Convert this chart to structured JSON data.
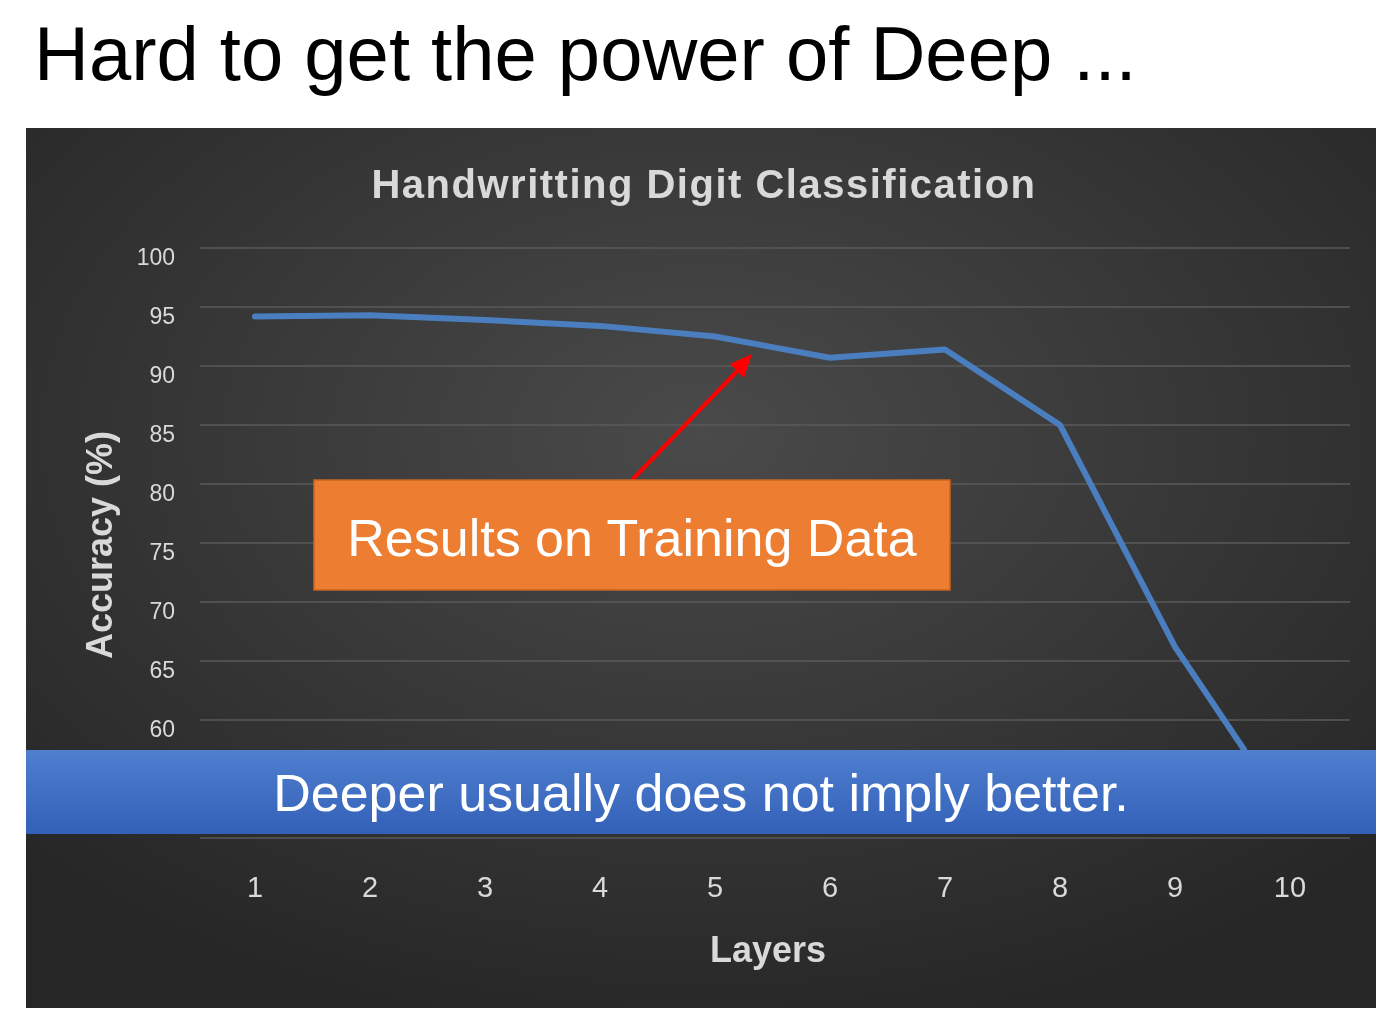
{
  "chart_data": {
    "type": "line",
    "title": "Hard to get the power of Deep ...",
    "subtitle": "Handwritting Digit Classification",
    "xlabel": "Layers",
    "ylabel": "Accuracy (%)",
    "x": [
      1,
      2,
      3,
      4,
      5,
      6,
      7,
      8,
      9,
      9.6
    ],
    "series": [
      {
        "color": "#4a7ebf",
        "values": [
          94.2,
          94.3,
          93.9,
          93.4,
          92.5,
          90.7,
          91.4,
          85.0,
          66.2,
          57.5
        ]
      }
    ],
    "xlim": [
      0.5,
      10.5
    ],
    "xticks": [
      1,
      2,
      3,
      4,
      5,
      6,
      7,
      8,
      9,
      10
    ],
    "ylim": [
      50,
      100
    ],
    "yticks": [
      {
        "value": 50,
        "label": null
      },
      60,
      65,
      70,
      75,
      80,
      85,
      90,
      95,
      100
    ],
    "grid": "y",
    "marker": "none",
    "line_style": "solid",
    "annotations": [
      "Results on Training Data",
      "Deeper usually does not imply better."
    ]
  }
}
